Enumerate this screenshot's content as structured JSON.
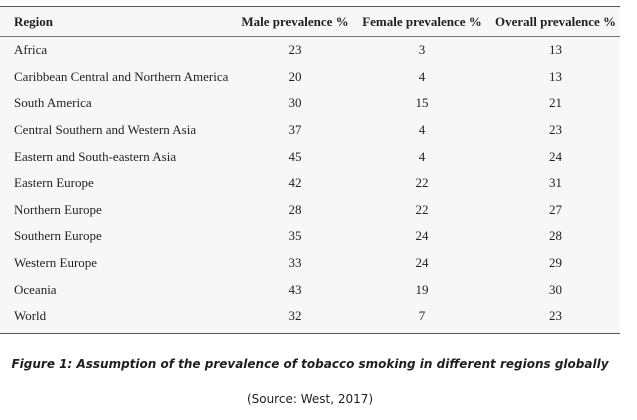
{
  "table": {
    "headers": [
      "Region",
      "Male prevalence %",
      "Female prevalence %",
      "Overall prevalence %"
    ],
    "rows": [
      [
        "Africa",
        "23",
        "3",
        "13"
      ],
      [
        "Caribbean Central and Northern America",
        "20",
        "4",
        "13"
      ],
      [
        "South America",
        "30",
        "15",
        "21"
      ],
      [
        "Central Southern and Western Asia",
        "37",
        "4",
        "23"
      ],
      [
        "Eastern and South-eastern Asia",
        "45",
        "4",
        "24"
      ],
      [
        "Eastern Europe",
        "42",
        "22",
        "31"
      ],
      [
        "Northern Europe",
        "28",
        "22",
        "27"
      ],
      [
        "Southern Europe",
        "35",
        "24",
        "28"
      ],
      [
        "Western Europe",
        "33",
        "24",
        "29"
      ],
      [
        "Oceania",
        "43",
        "19",
        "30"
      ],
      [
        "World",
        "32",
        "7",
        "23"
      ]
    ]
  },
  "caption": {
    "figure": "Figure 1: Assumption of the prevalence of tobacco smoking in different regions globally",
    "source": "(Source: West, 2017)"
  }
}
